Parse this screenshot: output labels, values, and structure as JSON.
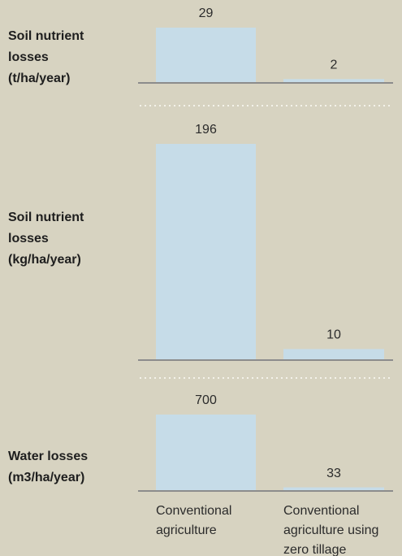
{
  "chart_data": [
    {
      "type": "bar",
      "label": [
        "Soil nutrient",
        "losses",
        "(t/ha/year)"
      ],
      "values": [
        29,
        2
      ],
      "color": "#c6dce8"
    },
    {
      "type": "bar",
      "label": [
        "Soil nutrient",
        "losses",
        "(kg/ha/year)"
      ],
      "values": [
        196,
        10
      ],
      "color": "#c6dce8"
    },
    {
      "type": "bar",
      "label": [
        "Water losses",
        "(m3/ha/year)"
      ],
      "values": [
        700,
        33
      ],
      "color": "#c6dce8",
      "categories": [
        [
          "Conventional",
          "agriculture"
        ],
        [
          "Conventional",
          "agriculture using",
          "zero tillage"
        ]
      ]
    }
  ]
}
